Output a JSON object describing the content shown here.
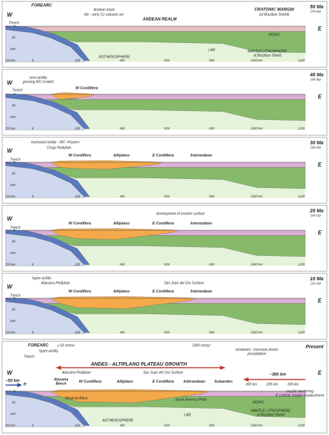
{
  "axes": {
    "west": "W",
    "east": "E",
    "depth": [
      "0",
      "50",
      "100",
      "150 km"
    ],
    "distance": [
      "0",
      "200",
      "400",
      "600",
      "800",
      "1000 km",
      "1200"
    ]
  },
  "panels": [
    {
      "age": "50 Ma",
      "age_range": "(70-50)",
      "labels": [
        "FOREARC",
        "Andean basin",
        "Mz - early Cz volcanic arc",
        "ANDEAN REALM",
        "CRATONIC MARGIN",
        "(of Brazilian Shield)",
        "Trench",
        "MOHO",
        "LAB",
        "ASTHENOSPHERE",
        "MANTLE LITHOSPHERE",
        "of Brazilian Shield"
      ]
    },
    {
      "age": "40 Ma",
      "age_range": "(45-35)",
      "labels": [
        "semi-aridity",
        "growing WC eroded",
        "Trench",
        "W Cordillera"
      ]
    },
    {
      "age": "30 Ma",
      "age_range": "(35-25)",
      "labels": [
        "increased aridity - WC «frozen»",
        "Chuja Pediplain",
        "Trench",
        "W Cordillera",
        "Altiplano",
        "E Cordillera",
        "Interandean"
      ]
    },
    {
      "age": "20 Ma",
      "age_range": "(25-15)",
      "labels": [
        "development of erosion surface",
        "Trench",
        "W Cordillera",
        "Altiplano",
        "E Cordillera",
        "Interandean"
      ]
    },
    {
      "age": "10 Ma",
      "age_range": "(15-10)",
      "labels": [
        "hyper-aridity",
        "Atacama Pediplain",
        "San Juan del Oro Surface",
        "Trench",
        "W Cordillera",
        "Altiplano",
        "E Cordillera",
        "Interandean"
      ]
    },
    {
      "age": "Present",
      "labels": [
        "FOREARC",
        "Trench",
        "≤ 50 mm/yr",
        "hyper-aridity",
        "1000 mm/yr",
        "windward - monsoon-driven",
        "precipitation",
        "ANDES - ALTIPLANO PLATEAU GROWTH",
        "Atacama Pediplain",
        "San Juan del Oro Surface",
        "Atacama",
        "Bench",
        "W Cordillera",
        "Altiplano",
        "E Cordillera",
        "Interandean",
        "Subandes",
        "~50 km",
        "tr",
        "~360 km",
        "300 km",
        "200 km",
        "100 km",
        "Marginal Block",
        "South America Plate",
        "MOHO",
        "LAB",
        "ASTHENOSPHERE",
        "MANTLE LITHOSPHERE",
        "of Brazilian Shield",
        "crustal shortening",
        "& cratonic margin displacement"
      ]
    }
  ]
}
